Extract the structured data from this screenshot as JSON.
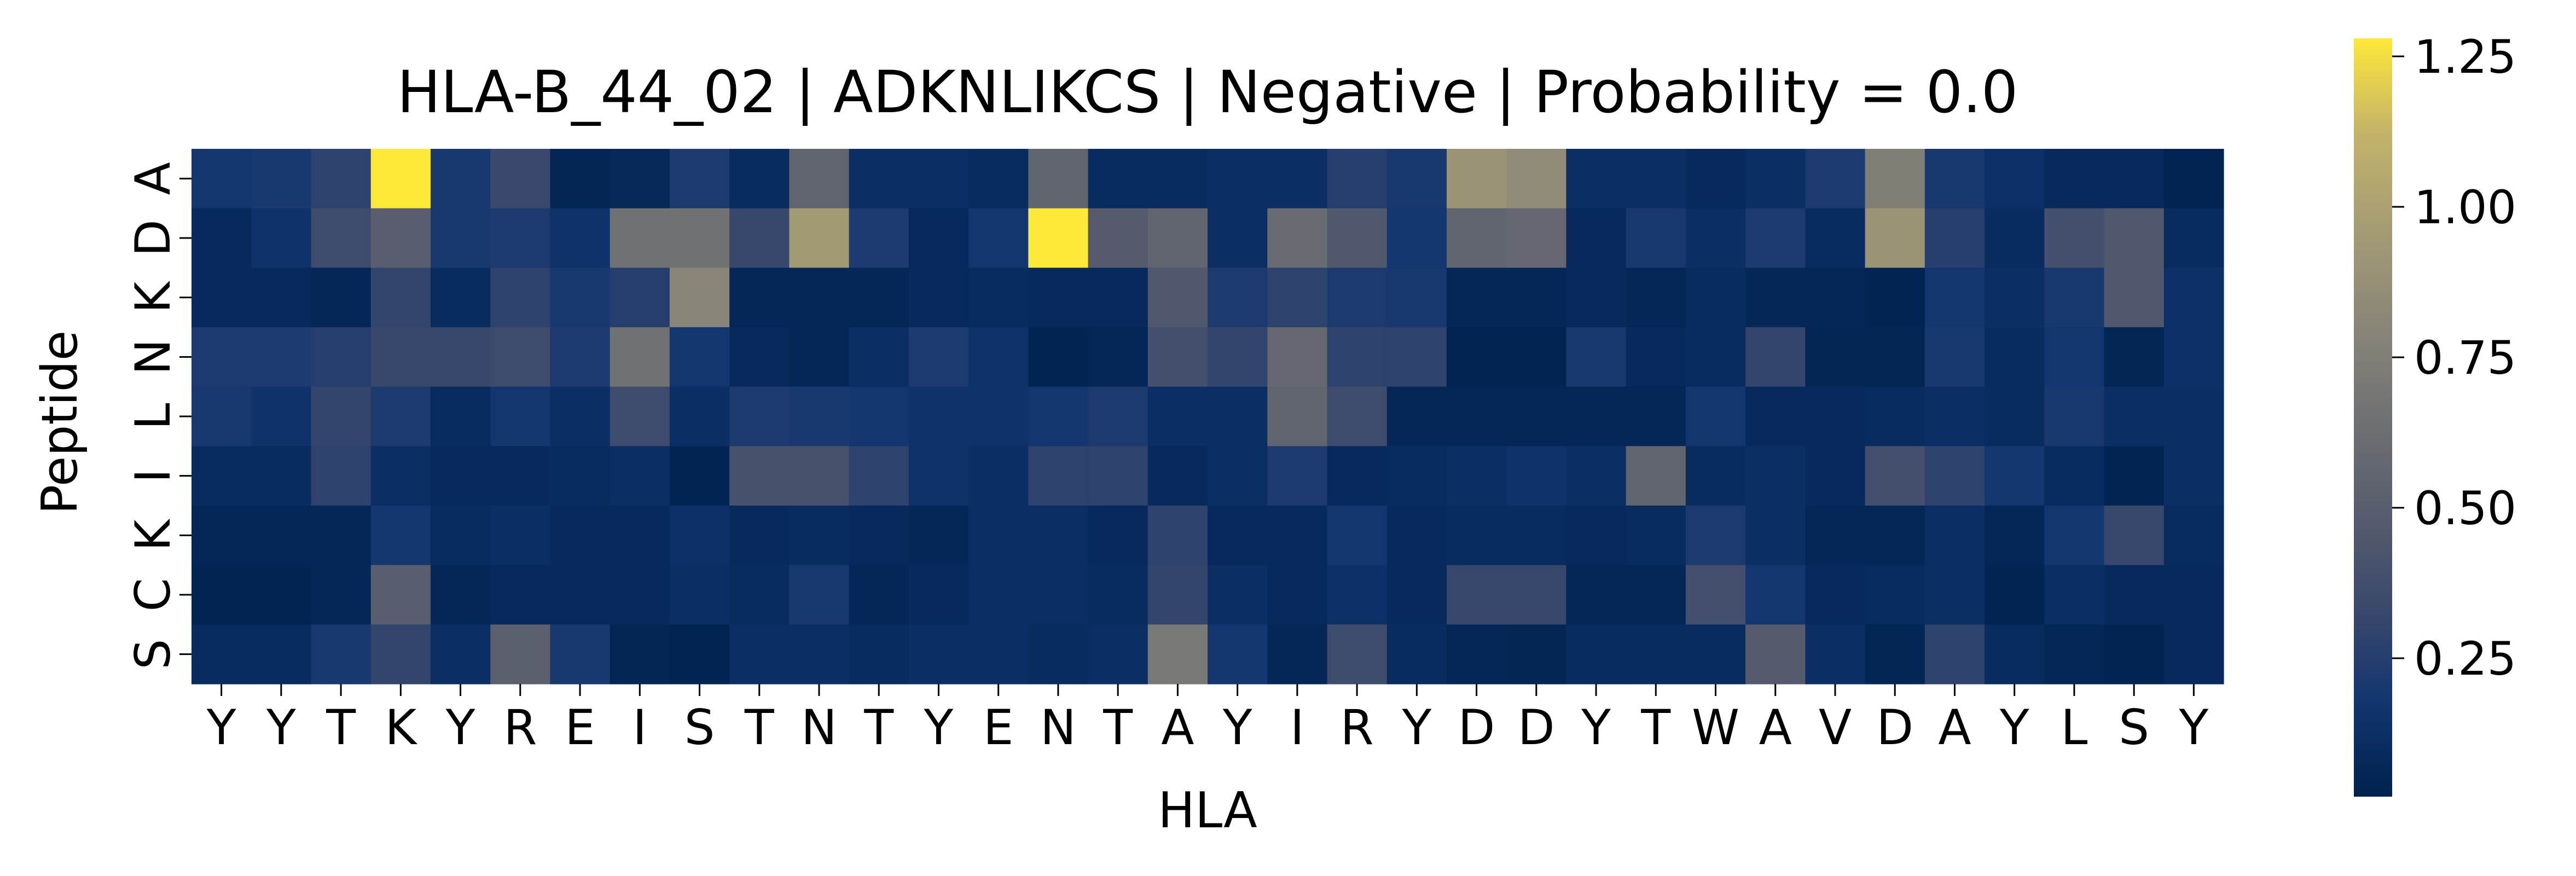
{
  "chart_data": {
    "type": "heatmap",
    "title": "HLA-B_44_02 | ADKNLIKCS | Negative | Probability = 0.0",
    "xlabel": "HLA",
    "ylabel": "Peptide",
    "x_categories": [
      "Y",
      "Y",
      "T",
      "K",
      "Y",
      "R",
      "E",
      "I",
      "S",
      "T",
      "N",
      "T",
      "Y",
      "E",
      "N",
      "T",
      "A",
      "Y",
      "I",
      "R",
      "Y",
      "D",
      "D",
      "Y",
      "T",
      "W",
      "A",
      "V",
      "D",
      "A",
      "Y",
      "L",
      "S",
      "Y"
    ],
    "y_categories": [
      "A",
      "D",
      "K",
      "N",
      "L",
      "I",
      "K",
      "C",
      "S"
    ],
    "values": [
      [
        0.18,
        0.2,
        0.28,
        1.28,
        0.2,
        0.33,
        0.05,
        0.07,
        0.22,
        0.1,
        0.55,
        0.12,
        0.12,
        0.1,
        0.55,
        0.1,
        0.1,
        0.12,
        0.12,
        0.25,
        0.2,
        0.9,
        0.85,
        0.12,
        0.12,
        0.08,
        0.12,
        0.22,
        0.75,
        0.2,
        0.14,
        0.08,
        0.08,
        0.04
      ],
      [
        0.08,
        0.15,
        0.35,
        0.5,
        0.2,
        0.22,
        0.15,
        0.65,
        0.65,
        0.32,
        0.95,
        0.22,
        0.08,
        0.18,
        1.28,
        0.48,
        0.55,
        0.12,
        0.6,
        0.45,
        0.18,
        0.55,
        0.58,
        0.08,
        0.2,
        0.12,
        0.22,
        0.1,
        0.9,
        0.25,
        0.1,
        0.38,
        0.45,
        0.1
      ],
      [
        0.08,
        0.08,
        0.06,
        0.3,
        0.1,
        0.28,
        0.2,
        0.25,
        0.8,
        0.06,
        0.06,
        0.06,
        0.08,
        0.1,
        0.08,
        0.08,
        0.45,
        0.22,
        0.28,
        0.22,
        0.2,
        0.06,
        0.06,
        0.08,
        0.06,
        0.1,
        0.06,
        0.06,
        0.04,
        0.18,
        0.12,
        0.2,
        0.45,
        0.14
      ],
      [
        0.22,
        0.22,
        0.25,
        0.32,
        0.32,
        0.35,
        0.22,
        0.65,
        0.18,
        0.08,
        0.06,
        0.12,
        0.22,
        0.15,
        0.04,
        0.06,
        0.38,
        0.3,
        0.58,
        0.28,
        0.28,
        0.04,
        0.04,
        0.2,
        0.08,
        0.1,
        0.3,
        0.05,
        0.05,
        0.2,
        0.1,
        0.18,
        0.05,
        0.14
      ],
      [
        0.2,
        0.15,
        0.3,
        0.22,
        0.1,
        0.18,
        0.12,
        0.35,
        0.12,
        0.22,
        0.2,
        0.18,
        0.15,
        0.15,
        0.18,
        0.22,
        0.12,
        0.12,
        0.55,
        0.35,
        0.06,
        0.06,
        0.06,
        0.06,
        0.06,
        0.18,
        0.08,
        0.08,
        0.1,
        0.12,
        0.1,
        0.2,
        0.12,
        0.12
      ],
      [
        0.1,
        0.1,
        0.28,
        0.12,
        0.08,
        0.08,
        0.1,
        0.12,
        0.04,
        0.4,
        0.4,
        0.28,
        0.15,
        0.12,
        0.28,
        0.28,
        0.08,
        0.12,
        0.22,
        0.08,
        0.1,
        0.12,
        0.15,
        0.12,
        0.55,
        0.1,
        0.12,
        0.08,
        0.38,
        0.28,
        0.18,
        0.1,
        0.04,
        0.12
      ],
      [
        0.06,
        0.06,
        0.06,
        0.18,
        0.1,
        0.12,
        0.08,
        0.08,
        0.14,
        0.08,
        0.1,
        0.08,
        0.06,
        0.12,
        0.12,
        0.08,
        0.28,
        0.08,
        0.08,
        0.18,
        0.08,
        0.1,
        0.1,
        0.08,
        0.1,
        0.22,
        0.12,
        0.06,
        0.06,
        0.12,
        0.06,
        0.18,
        0.32,
        0.1
      ],
      [
        0.04,
        0.04,
        0.06,
        0.5,
        0.06,
        0.08,
        0.08,
        0.08,
        0.12,
        0.1,
        0.2,
        0.06,
        0.08,
        0.12,
        0.12,
        0.1,
        0.3,
        0.12,
        0.08,
        0.14,
        0.08,
        0.32,
        0.32,
        0.06,
        0.06,
        0.38,
        0.18,
        0.08,
        0.1,
        0.12,
        0.04,
        0.12,
        0.08,
        0.08
      ],
      [
        0.1,
        0.1,
        0.2,
        0.3,
        0.12,
        0.52,
        0.2,
        0.05,
        0.04,
        0.12,
        0.12,
        0.1,
        0.12,
        0.12,
        0.1,
        0.12,
        0.7,
        0.18,
        0.06,
        0.35,
        0.1,
        0.06,
        0.05,
        0.1,
        0.1,
        0.1,
        0.48,
        0.12,
        0.05,
        0.28,
        0.1,
        0.06,
        0.04,
        0.08
      ]
    ],
    "colorbar": {
      "colormap": "cividis",
      "min": 0.02,
      "max": 1.28,
      "ticks": [
        "0.25",
        "0.50",
        "0.75",
        "1.00",
        "1.25"
      ],
      "tick_values": [
        0.25,
        0.5,
        0.75,
        1.0,
        1.25
      ]
    },
    "grid": false
  }
}
